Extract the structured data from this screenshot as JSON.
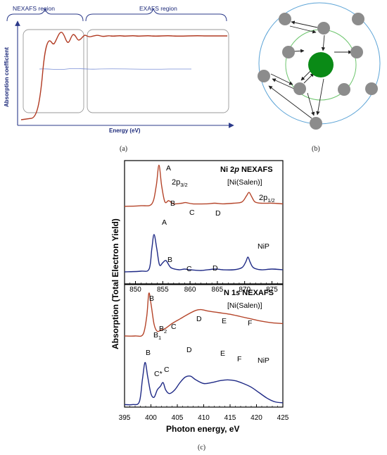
{
  "panel_a": {
    "label": "(a)",
    "nexafs_region": "NEXAFS region",
    "exafs_region": "EXAFS region",
    "ylabel": "Absorption coefficient",
    "xlabel": "Energy (eV)"
  },
  "panel_b": {
    "label": "(b)"
  },
  "panel_c": {
    "label": "(c)",
    "ylabel": "Absorption (Total Electron Yield)",
    "xlabel": "Photon energy, eV",
    "top": {
      "title": "Ni 2p NEXAFS",
      "subtitle": "[Ni(Salen)]",
      "sample2": "NiP",
      "x_ticks": [
        "850",
        "855",
        "860",
        "865",
        "870",
        "875"
      ],
      "xlim": [
        848,
        877
      ],
      "peaks_salen": [
        "A",
        "B",
        "C",
        "D"
      ],
      "peaks_nip": [
        "A",
        "B",
        "C",
        "D"
      ],
      "edge_main": "2p",
      "edge_main_sub": "3/2",
      "edge_second": "2p",
      "edge_second_sub": "1/2"
    },
    "bottom": {
      "title": "N 1s NEXAFS",
      "subtitle": "[Ni(Salen)]",
      "sample2": "NiP",
      "x_ticks": [
        "395",
        "400",
        "405",
        "410",
        "415",
        "420",
        "425"
      ],
      "xlim": [
        395,
        425
      ],
      "peaks_salen": [
        "B",
        "B",
        "C",
        "D",
        "E",
        "F"
      ],
      "peak_b1_sub": "1",
      "peak_b2_sub": "2",
      "peaks_nip": [
        "B",
        "C*",
        "C",
        "D",
        "E",
        "F"
      ]
    },
    "colors": {
      "salen": "#b5452a",
      "nip": "#1f2a86"
    }
  },
  "chart_data": [
    {
      "type": "line",
      "title": "Ni 2p NEXAFS",
      "xlabel": "Photon energy, eV",
      "ylabel": "Absorption (Total Electron Yield)",
      "xlim": [
        848,
        877
      ],
      "series": [
        {
          "name": "[Ni(Salen)]",
          "x": [
            848,
            851,
            853,
            853.8,
            854.3,
            854.8,
            855.4,
            856.1,
            857,
            858.5,
            859.2,
            860.5,
            863,
            864.5,
            866,
            868,
            869.5,
            870.3,
            870.8,
            871.3,
            871.9,
            873,
            875,
            877
          ],
          "y": [
            0.3,
            0.31,
            0.34,
            0.62,
            0.95,
            0.62,
            0.37,
            0.39,
            0.34,
            0.35,
            0.36,
            0.34,
            0.34,
            0.35,
            0.34,
            0.35,
            0.37,
            0.46,
            0.52,
            0.45,
            0.37,
            0.35,
            0.35,
            0.34
          ]
        },
        {
          "name": "NiP",
          "x": [
            848,
            851,
            852.5,
            853,
            853.4,
            853.9,
            854.4,
            855,
            855.6,
            856.5,
            858,
            859,
            860,
            862,
            864.5,
            866,
            868,
            869.5,
            870.2,
            870.6,
            871,
            871.6,
            873,
            875,
            877
          ],
          "y": [
            0.02,
            0.03,
            0.06,
            0.35,
            0.55,
            0.35,
            0.12,
            0.15,
            0.18,
            0.08,
            0.05,
            0.06,
            0.05,
            0.04,
            0.06,
            0.05,
            0.05,
            0.08,
            0.16,
            0.23,
            0.16,
            0.08,
            0.05,
            0.06,
            0.05
          ]
        }
      ]
    },
    {
      "type": "line",
      "title": "N 1s NEXAFS",
      "xlabel": "Photon energy, eV",
      "ylabel": "Absorption (Total Electron Yield)",
      "xlim": [
        395,
        425
      ],
      "series": [
        {
          "name": "[Ni(Salen)]",
          "x": [
            395,
            397,
            398.5,
            399.2,
            399.6,
            400,
            400.6,
            401.2,
            402,
            402.8,
            404,
            405.5,
            407,
            408.5,
            409.5,
            411,
            413,
            415,
            417,
            419,
            421,
            423,
            425
          ],
          "y": [
            0.3,
            0.3,
            0.32,
            0.55,
            0.85,
            0.72,
            0.45,
            0.36,
            0.38,
            0.4,
            0.46,
            0.52,
            0.58,
            0.63,
            0.64,
            0.62,
            0.6,
            0.58,
            0.55,
            0.52,
            0.49,
            0.47,
            0.46
          ]
        },
        {
          "name": "NiP",
          "x": [
            395,
            396.5,
            397.8,
            398.4,
            398.9,
            399.4,
            400,
            400.6,
            401.2,
            401.8,
            402.3,
            402.8,
            403.5,
            404.5,
            405.5,
            406.5,
            407.5,
            408.5,
            410,
            411.5,
            413,
            414.5,
            416,
            417.5,
            419,
            420.5,
            422,
            423.5,
            425
          ],
          "y": [
            0.02,
            0.02,
            0.05,
            0.3,
            0.48,
            0.32,
            0.14,
            0.1,
            0.18,
            0.22,
            0.26,
            0.18,
            0.14,
            0.18,
            0.26,
            0.32,
            0.33,
            0.29,
            0.25,
            0.26,
            0.28,
            0.29,
            0.28,
            0.25,
            0.21,
            0.15,
            0.09,
            0.05,
            0.04
          ]
        }
      ]
    }
  ]
}
